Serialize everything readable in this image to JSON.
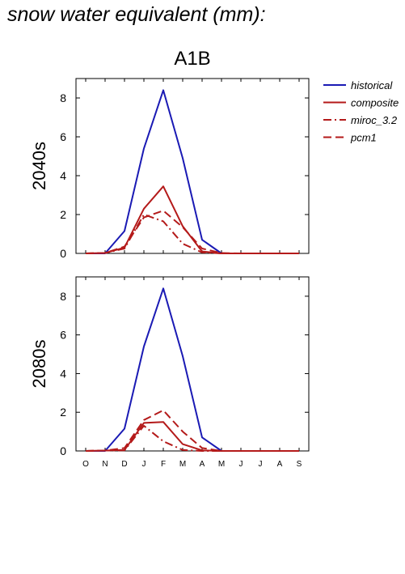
{
  "page_title": "snow water equivalent (mm):",
  "chart_data": {
    "type": "line",
    "scenario": "A1B",
    "categories": [
      "O",
      "N",
      "D",
      "J",
      "F",
      "M",
      "A",
      "M",
      "J",
      "J",
      "A",
      "S"
    ],
    "ylim": [
      0,
      9
    ],
    "yticks": [
      0,
      2,
      4,
      6,
      8
    ],
    "legend_position": "right",
    "series_styles": [
      {
        "name": "historical",
        "color": "#1a1ab4",
        "dash": ""
      },
      {
        "name": "composite",
        "color": "#b41a1a",
        "dash": ""
      },
      {
        "name": "miroc_3.2",
        "color": "#b41a1a",
        "dash": "10,4,2,4"
      },
      {
        "name": "pcm1",
        "color": "#b41a1a",
        "dash": "10,5"
      }
    ],
    "panels": [
      {
        "label": "2040s",
        "series": [
          {
            "name": "historical",
            "values": [
              0,
              0,
              1.15,
              5.4,
              8.4,
              4.9,
              0.7,
              0,
              0,
              0,
              0,
              0
            ]
          },
          {
            "name": "composite",
            "values": [
              0,
              0.02,
              0.3,
              2.3,
              3.45,
              1.4,
              0.1,
              0,
              0,
              0,
              0,
              0
            ]
          },
          {
            "name": "miroc_3.2",
            "values": [
              0,
              0.02,
              0.25,
              2.0,
              1.65,
              0.5,
              0.05,
              0,
              0,
              0,
              0,
              0
            ]
          },
          {
            "name": "pcm1",
            "values": [
              0,
              0.02,
              0.35,
              1.85,
              2.2,
              1.35,
              0.25,
              0.02,
              0,
              0,
              0,
              0
            ]
          }
        ]
      },
      {
        "label": "2080s",
        "series": [
          {
            "name": "historical",
            "values": [
              0,
              0,
              1.15,
              5.4,
              8.4,
              4.9,
              0.7,
              0,
              0,
              0,
              0,
              0
            ]
          },
          {
            "name": "composite",
            "values": [
              0,
              0.02,
              0.05,
              1.45,
              1.5,
              0.35,
              0.03,
              0,
              0,
              0,
              0,
              0
            ]
          },
          {
            "name": "miroc_3.2",
            "values": [
              0,
              0.02,
              0.03,
              1.3,
              0.5,
              0.05,
              0,
              0,
              0,
              0,
              0,
              0
            ]
          },
          {
            "name": "pcm1",
            "values": [
              0,
              0.02,
              0.15,
              1.6,
              2.1,
              1.0,
              0.15,
              0,
              0,
              0,
              0,
              0
            ]
          }
        ]
      }
    ]
  }
}
